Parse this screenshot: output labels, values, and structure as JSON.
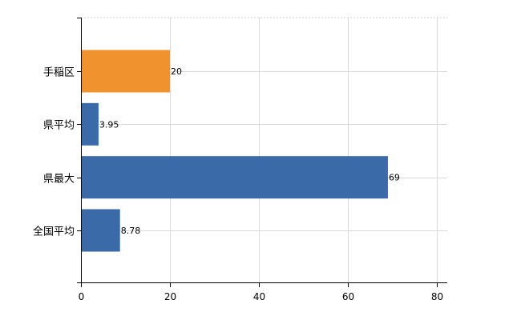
{
  "chart_data": {
    "type": "bar",
    "orientation": "horizontal",
    "categories": [
      "手稲区",
      "県平均",
      "県最大",
      "全国平均"
    ],
    "values": [
      20,
      3.95,
      69,
      8.78
    ],
    "data_labels": [
      "20",
      "3.95",
      "69",
      "8.78"
    ],
    "bar_colors": [
      "#f0922e",
      "#3a6aa8",
      "#3a6aa8",
      "#3a6aa8"
    ],
    "xlim": [
      0,
      80
    ],
    "x_ticks": [
      0,
      20,
      40,
      60,
      80
    ],
    "x_tick_labels": [
      "0",
      "20",
      "40",
      "60",
      "80"
    ],
    "title": "",
    "xlabel": "",
    "ylabel": "",
    "grid": true,
    "legend": "none"
  }
}
